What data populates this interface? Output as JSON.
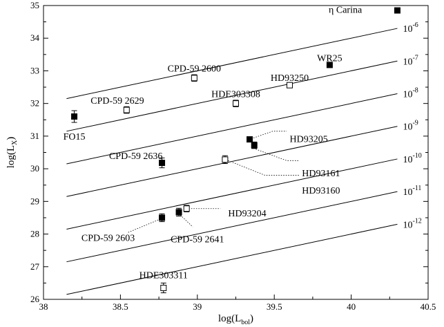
{
  "chart_data": {
    "type": "scatter",
    "xlabel": "log(L",
    "xlabel_sub": "bol",
    "ylabel": "log(L",
    "ylabel_sub": "X",
    "xlim": [
      38,
      40.5
    ],
    "ylim": [
      26,
      35
    ],
    "xticks": [
      38,
      38.5,
      39,
      39.5,
      40,
      40.5
    ],
    "xtick_labels": [
      "38",
      "38.5",
      "39",
      "39.5",
      "40",
      "40.5"
    ],
    "yticks": [
      26,
      27,
      28,
      29,
      30,
      31,
      32,
      33,
      34,
      35
    ],
    "ytick_labels": [
      "26",
      "27",
      "28",
      "29",
      "30",
      "31",
      "32",
      "33",
      "34",
      "35"
    ],
    "grid": false,
    "ratio_lines": [
      {
        "base": "10",
        "exp": "-6",
        "offset": -6
      },
      {
        "base": "10",
        "exp": "-7",
        "offset": -7
      },
      {
        "base": "10",
        "exp": "-8",
        "offset": -8
      },
      {
        "base": "10",
        "exp": "-9",
        "offset": -9
      },
      {
        "base": "10",
        "exp": "-10",
        "offset": -10
      },
      {
        "base": "10",
        "exp": "-11",
        "offset": -11
      },
      {
        "base": "10",
        "exp": "-12",
        "offset": -12
      }
    ],
    "ratio_line_x_range": [
      38.15,
      40.3
    ],
    "points": [
      {
        "label": "η Carina",
        "x": 40.3,
        "y": 34.85,
        "yerr": 0.0,
        "filled": true,
        "lx": 40.07,
        "ly": 34.88,
        "anchor": "end"
      },
      {
        "label": "WR25",
        "x": 39.86,
        "y": 33.18,
        "yerr": 0.05,
        "filled": true,
        "lx": 39.86,
        "ly": 33.4,
        "anchor": "middle"
      },
      {
        "label": "HD93250",
        "x": 39.6,
        "y": 32.56,
        "yerr": 0.08,
        "filled": false,
        "lx": 39.6,
        "ly": 32.8,
        "anchor": "middle"
      },
      {
        "label": "CPD-59 2600",
        "x": 38.98,
        "y": 32.78,
        "yerr": 0.1,
        "filled": false,
        "lx": 38.98,
        "ly": 33.08,
        "anchor": "middle"
      },
      {
        "label": "HDE303308",
        "x": 39.25,
        "y": 32.0,
        "yerr": 0.1,
        "filled": false,
        "lx": 39.25,
        "ly": 32.3,
        "anchor": "middle"
      },
      {
        "label": "CPD-59 2629",
        "x": 38.54,
        "y": 31.8,
        "yerr": 0.1,
        "filled": false,
        "lx": 38.48,
        "ly": 32.1,
        "anchor": "middle"
      },
      {
        "label": "FO15",
        "x": 38.2,
        "y": 31.6,
        "yerr": 0.18,
        "filled": true,
        "lx": 38.2,
        "ly": 31.0,
        "anchor": "middle"
      },
      {
        "label": "HD93205",
        "x": 39.34,
        "y": 30.9,
        "yerr": 0.05,
        "filled": true,
        "lx": 39.6,
        "ly": 30.92,
        "anchor": "start",
        "leader": [
          [
            39.35,
            30.92
          ],
          [
            39.49,
            31.15
          ],
          [
            39.58,
            31.15
          ]
        ]
      },
      {
        "label": "HD93161",
        "x": 39.37,
        "y": 30.72,
        "yerr": 0.1,
        "filled": true,
        "lx": 39.68,
        "ly": 29.88,
        "anchor": "start",
        "leader": [
          [
            39.38,
            30.6
          ],
          [
            39.58,
            30.25
          ],
          [
            39.66,
            30.25
          ]
        ]
      },
      {
        "label": "HD93160",
        "x": 39.18,
        "y": 30.28,
        "yerr": 0.12,
        "filled": false,
        "lx": 39.68,
        "ly": 29.35,
        "anchor": "start",
        "leader": [
          [
            39.2,
            30.25
          ],
          [
            39.44,
            29.8
          ],
          [
            39.66,
            29.8
          ]
        ]
      },
      {
        "label": "CPD-59 2636",
        "x": 38.77,
        "y": 30.18,
        "yerr": 0.15,
        "filled": true,
        "lx": 38.6,
        "ly": 30.4,
        "anchor": "middle"
      },
      {
        "label": "HD93204",
        "x": 38.93,
        "y": 28.78,
        "yerr": 0.1,
        "filled": false,
        "lx": 39.2,
        "ly": 28.65,
        "anchor": "start",
        "leader": [
          [
            38.96,
            28.78
          ],
          [
            39.15,
            28.78
          ]
        ]
      },
      {
        "label": "CPD-59 2641",
        "x": 38.88,
        "y": 28.67,
        "yerr": 0.12,
        "filled": true,
        "lx": 39.0,
        "ly": 27.85,
        "anchor": "middle",
        "leader": [
          [
            38.89,
            28.58
          ],
          [
            38.97,
            28.22
          ]
        ]
      },
      {
        "label": "CPD-59 2603",
        "x": 38.77,
        "y": 28.5,
        "yerr": 0.12,
        "filled": true,
        "lx": 38.42,
        "ly": 27.9,
        "anchor": "middle",
        "leader": [
          [
            38.76,
            28.46
          ],
          [
            38.55,
            28.05
          ]
        ]
      },
      {
        "label": "HDE303311",
        "x": 38.78,
        "y": 26.35,
        "yerr": 0.15,
        "filled": false,
        "lx": 38.78,
        "ly": 26.75,
        "anchor": "middle"
      }
    ]
  }
}
